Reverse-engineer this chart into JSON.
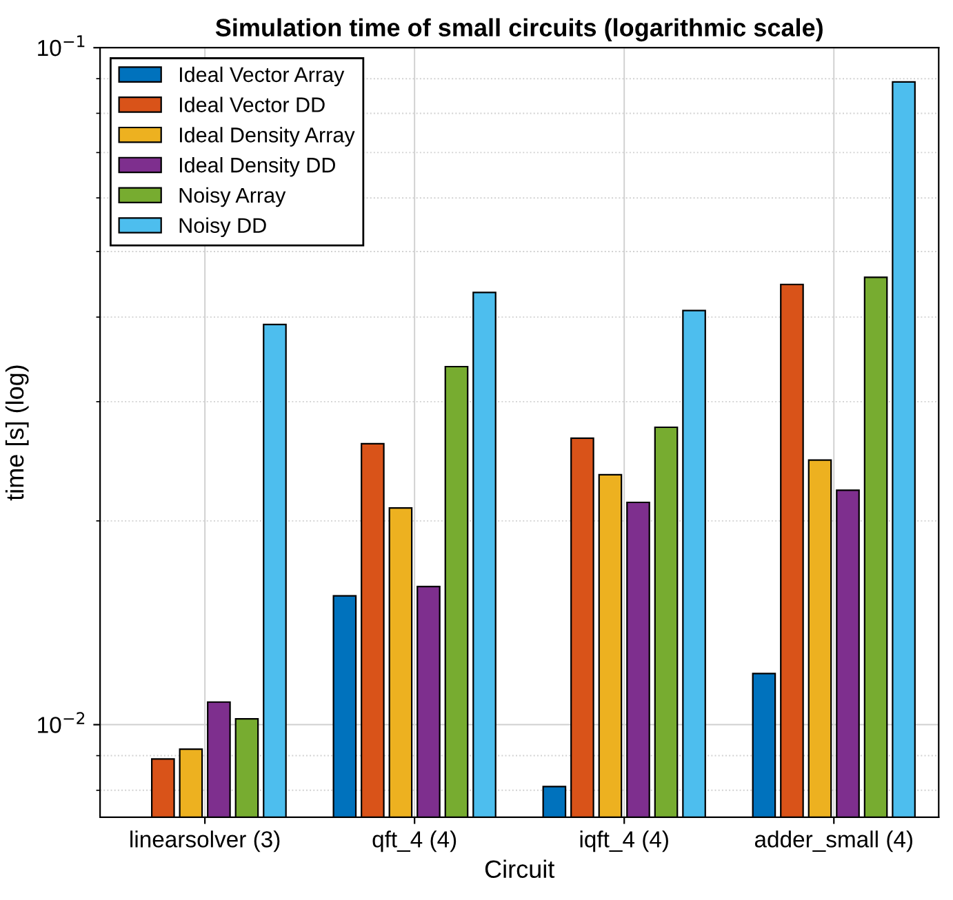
{
  "chart_data": {
    "type": "bar",
    "title": "Simulation time of small circuits (logarithmic scale)",
    "xlabel": "Circuit",
    "ylabel": "time [s] (log)",
    "categories": [
      "linearsolver (3)",
      "qft_4 (4)",
      "iqft_4 (4)",
      "adder_small (4)"
    ],
    "series": [
      {
        "name": "Ideal Vector Array",
        "color": "#0072bd",
        "values": [
          null,
          0.0155,
          0.0081,
          0.0119
        ]
      },
      {
        "name": "Ideal Vector DD",
        "color": "#d95319",
        "values": [
          0.0089,
          0.026,
          0.0265,
          0.0447
        ]
      },
      {
        "name": "Ideal Density Array",
        "color": "#edb120",
        "values": [
          0.0092,
          0.0209,
          0.0234,
          0.0246
        ]
      },
      {
        "name": "Ideal Density DD",
        "color": "#7e2f8e",
        "values": [
          0.0108,
          0.016,
          0.0213,
          0.0222
        ]
      },
      {
        "name": "Noisy Array",
        "color": "#77ac30",
        "values": [
          0.0102,
          0.0338,
          0.0275,
          0.0458
        ]
      },
      {
        "name": "Noisy DD",
        "color": "#4dbeee",
        "values": [
          0.039,
          0.0435,
          0.0409,
          0.089
        ]
      }
    ],
    "log": "y",
    "ylim": [
      0.0073,
      0.1
    ],
    "yticks": [
      {
        "value": 0.01,
        "label": "10$^{−2}$"
      },
      {
        "value": 0.1,
        "label": "10$^{−1}$"
      }
    ],
    "grid": true,
    "legend": "top left"
  }
}
